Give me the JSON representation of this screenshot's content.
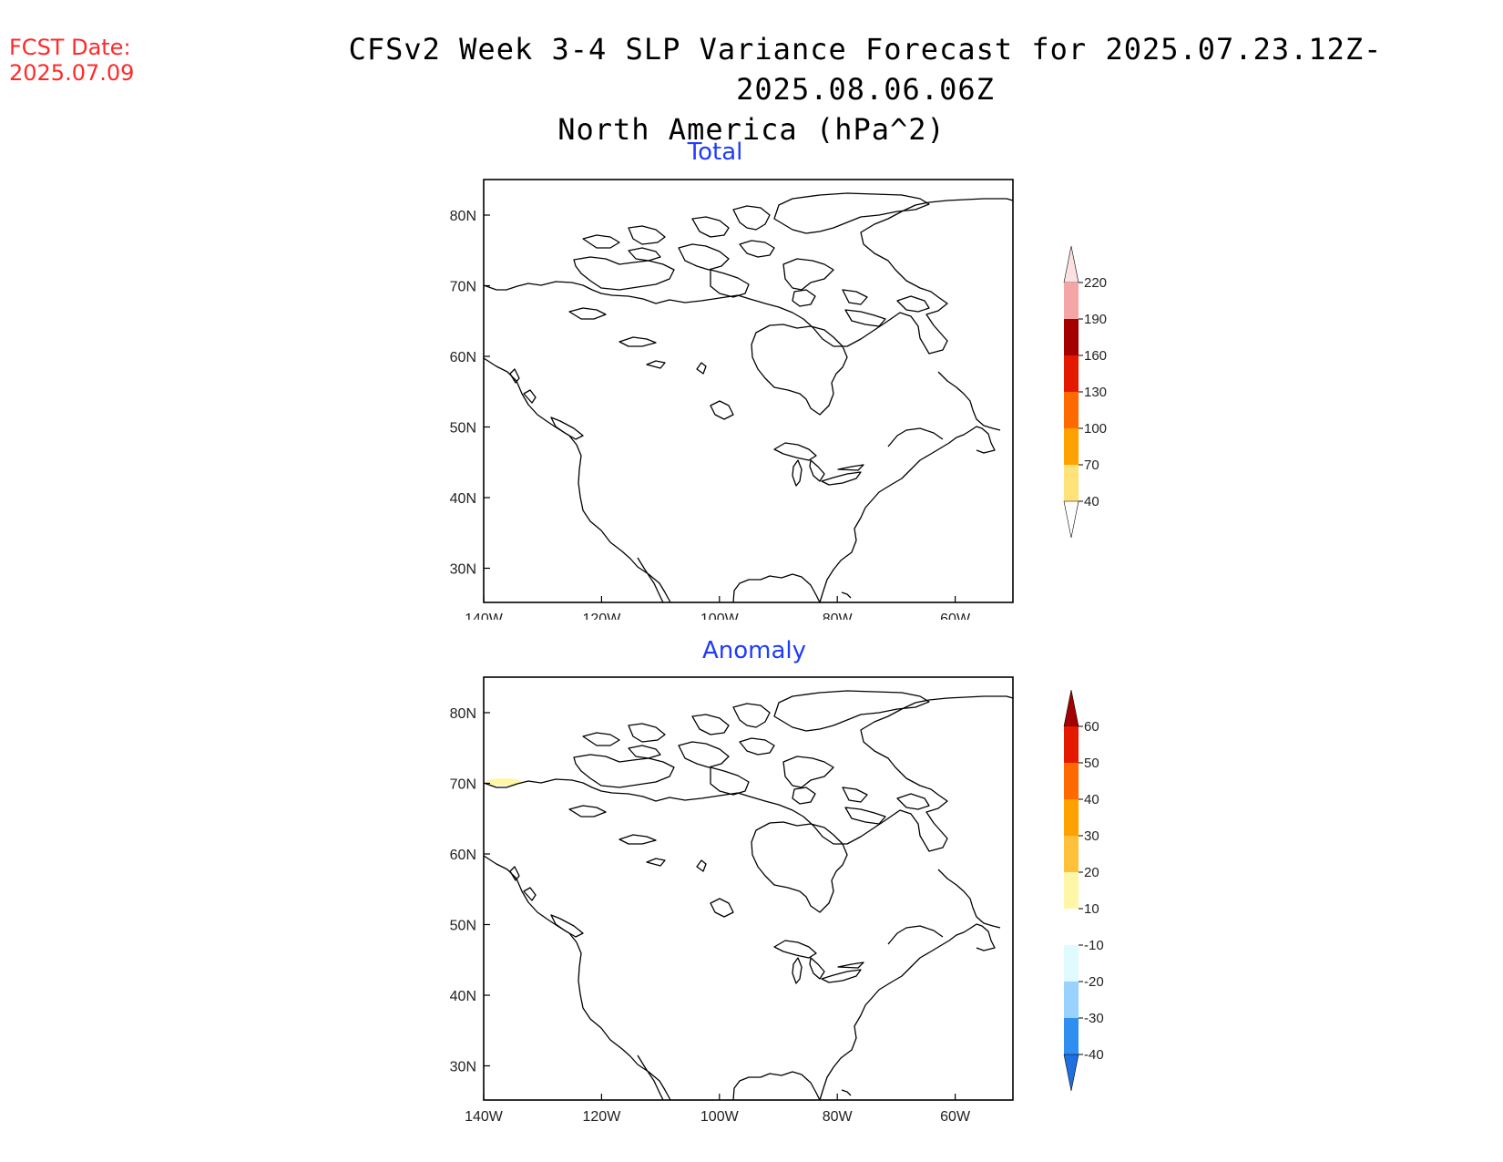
{
  "header": {
    "fcst_label": "FCST Date:",
    "fcst_date": "2025.07.09",
    "title_line1": "CFSv2 Week 3-4 SLP Variance Forecast for 2025.07.23.12Z-2025.08.06.06Z",
    "title_line2": "North America (hPa^2)"
  },
  "axes": {
    "lat_labels": [
      "80N",
      "70N",
      "60N",
      "50N",
      "40N",
      "30N"
    ],
    "lon_labels": [
      "140W",
      "120W",
      "100W",
      "80W",
      "60W"
    ]
  },
  "panels": [
    {
      "title": "Total",
      "colorbar": {
        "labels": [
          "220",
          "190",
          "160",
          "130",
          "100",
          "70",
          "40"
        ],
        "colors": [
          "#f4a6a6",
          "#a50000",
          "#e41a00",
          "#ff6a00",
          "#ffa100",
          "#ffe27a"
        ],
        "top_color": "#fde0e0",
        "bottom_color": "#ffffff"
      }
    },
    {
      "title": "Anomaly",
      "colorbar": {
        "labels": [
          "60",
          "50",
          "40",
          "30",
          "20",
          "10",
          "-10",
          "-20",
          "-30",
          "-40"
        ],
        "colors": [
          "#e41a00",
          "#ff6a00",
          "#ffa100",
          "#ffc03a",
          "#fff7a8",
          "#ffffff",
          "#e0fbff",
          "#99d1ff",
          "#2f8ff0"
        ],
        "top_color": "#a50000",
        "bottom_color": "#1f6fe0"
      }
    }
  ]
}
